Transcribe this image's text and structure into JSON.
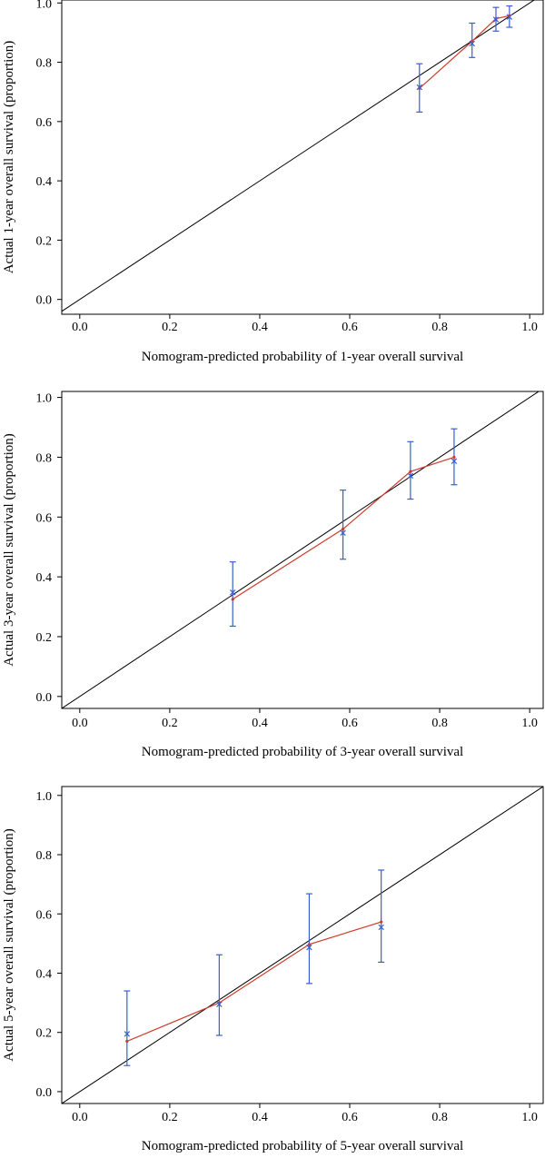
{
  "chart_data": [
    {
      "type": "scatter",
      "subtype": "calibration",
      "xlabel": "Nomogram-predicted probability of 1-year overall survival",
      "ylabel": "Actual 1-year overall survival (proportion)",
      "xlim": [
        -0.04,
        1.03
      ],
      "ylim": [
        -0.05,
        1.01
      ],
      "xticks": [
        "0.0",
        "0.2",
        "0.4",
        "0.6",
        "0.8",
        "1.0"
      ],
      "yticks": [
        "0.0",
        "0.2",
        "0.4",
        "0.6",
        "0.8",
        "1.0"
      ],
      "reference_line": "diagonal",
      "colors": {
        "observed": "#3a5fcd",
        "predicted": "#cd3b2a",
        "reference": "#000000"
      },
      "points": [
        {
          "x": 0.755,
          "observed": 0.716,
          "predicted": 0.712,
          "ci": [
            0.632,
            0.795
          ]
        },
        {
          "x": 0.872,
          "observed": 0.863,
          "predicted": 0.871,
          "ci": [
            0.816,
            0.932
          ]
        },
        {
          "x": 0.925,
          "observed": 0.944,
          "predicted": 0.947,
          "ci": [
            0.905,
            0.985
          ]
        },
        {
          "x": 0.955,
          "observed": 0.953,
          "predicted": 0.957,
          "ci": [
            0.918,
            0.99
          ]
        }
      ]
    },
    {
      "type": "scatter",
      "subtype": "calibration",
      "xlabel": "Nomogram-predicted probability of 3-year overall survival",
      "ylabel": "Actual 3-year overall survival (proportion)",
      "xlim": [
        -0.04,
        1.03
      ],
      "ylim": [
        -0.04,
        1.02
      ],
      "xticks": [
        "0.0",
        "0.2",
        "0.4",
        "0.6",
        "0.8",
        "1.0"
      ],
      "yticks": [
        "0.0",
        "0.2",
        "0.4",
        "0.6",
        "0.8",
        "1.0"
      ],
      "reference_line": "diagonal",
      "colors": {
        "observed": "#3a5fcd",
        "predicted": "#cd3b2a",
        "reference": "#000000"
      },
      "points": [
        {
          "x": 0.34,
          "observed": 0.348,
          "predicted": 0.325,
          "ci": [
            0.235,
            0.45
          ]
        },
        {
          "x": 0.585,
          "observed": 0.547,
          "predicted": 0.56,
          "ci": [
            0.459,
            0.69
          ]
        },
        {
          "x": 0.735,
          "observed": 0.738,
          "predicted": 0.752,
          "ci": [
            0.66,
            0.852
          ]
        },
        {
          "x": 0.832,
          "observed": 0.787,
          "predicted": 0.8,
          "ci": [
            0.708,
            0.895
          ]
        }
      ]
    },
    {
      "type": "scatter",
      "subtype": "calibration",
      "xlabel": "Nomogram-predicted probability of 5-year overall survival",
      "ylabel": "Actual 5-year overall survival (proportion)",
      "xlim": [
        -0.04,
        1.03
      ],
      "ylim": [
        -0.04,
        1.03
      ],
      "xticks": [
        "0.0",
        "0.2",
        "0.4",
        "0.6",
        "0.8",
        "1.0"
      ],
      "yticks": [
        "0.0",
        "0.2",
        "0.4",
        "0.6",
        "0.8",
        "1.0"
      ],
      "reference_line": "diagonal",
      "colors": {
        "observed": "#3a5fcd",
        "predicted": "#cd3b2a",
        "reference": "#000000"
      },
      "points": [
        {
          "x": 0.105,
          "observed": 0.195,
          "predicted": 0.17,
          "ci": [
            0.088,
            0.34
          ]
        },
        {
          "x": 0.31,
          "observed": 0.295,
          "predicted": 0.3,
          "ci": [
            0.19,
            0.462
          ]
        },
        {
          "x": 0.51,
          "observed": 0.487,
          "predicted": 0.497,
          "ci": [
            0.365,
            0.668
          ]
        },
        {
          "x": 0.67,
          "observed": 0.555,
          "predicted": 0.573,
          "ci": [
            0.437,
            0.748
          ]
        }
      ]
    }
  ]
}
